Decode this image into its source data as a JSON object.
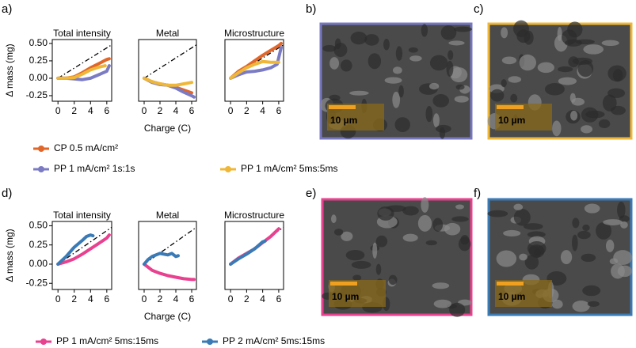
{
  "panel_labels": [
    "a)",
    "b)",
    "c)",
    "d)",
    "e)",
    "f)"
  ],
  "scale_bars": [
    "10 µm",
    "10 µm",
    "10 µm",
    "10 µm"
  ],
  "chart_data": [
    {
      "type": "line",
      "title": "Total intensity",
      "ylabel": "Δ mass (mg)",
      "xlim": [
        -0.7,
        6.6
      ],
      "ylim": [
        -0.33,
        0.556
      ],
      "xticks": [
        0,
        2,
        4,
        6
      ],
      "yticks": [
        {
          "value": 0.5,
          "label": "0.50"
        },
        {
          "value": 0.25,
          "label": "0.25"
        },
        {
          "value": 0,
          "label": "0.00"
        },
        {
          "value": -0.25,
          "label": "-0.25"
        }
      ],
      "reference": {
        "x": [
          0,
          6.6
        ],
        "values": [
          0,
          0.48
        ]
      },
      "series": [
        {
          "name": "CP 0.5 mA/cm²",
          "color": "#e0662a",
          "x": [
            0,
            1,
            2,
            3,
            4,
            5,
            6,
            6.3
          ],
          "values": [
            0,
            0,
            0.02,
            0.08,
            0.15,
            0.21,
            0.27,
            0.28
          ]
        },
        {
          "name": "PP 1 mA/cm² 1s:1s",
          "color": "#7b7bc4",
          "x": [
            0,
            1,
            2,
            3,
            4,
            5,
            6,
            6.3
          ],
          "values": [
            0,
            0,
            -0.01,
            -0.02,
            0,
            0.05,
            0.1,
            0.18
          ]
        },
        {
          "name": "PP 1 mA/cm² 5ms:5ms",
          "color": "#efb737",
          "x": [
            0,
            1,
            2,
            3,
            4,
            5,
            5.8
          ],
          "values": [
            0,
            0,
            0.01,
            0.06,
            0.12,
            0.16,
            0.18
          ]
        }
      ]
    },
    {
      "type": "line",
      "title": "Metal",
      "xlabel": "Charge (C)",
      "xlim": [
        -0.7,
        6.6
      ],
      "ylim": [
        -0.33,
        0.556
      ],
      "xticks": [
        0,
        2,
        4,
        6
      ],
      "reference": {
        "x": [
          0,
          6.6
        ],
        "values": [
          0,
          0.48
        ]
      },
      "series": [
        {
          "name": "CP 0.5 mA/cm²",
          "color": "#e0662a",
          "x": [
            0,
            1,
            2,
            3,
            4,
            5,
            6
          ],
          "values": [
            0,
            -0.05,
            -0.08,
            -0.1,
            -0.13,
            -0.17,
            -0.21
          ]
        },
        {
          "name": "PP 1 mA/cm² 1s:1s",
          "color": "#7b7bc4",
          "x": [
            0,
            1,
            2,
            3,
            4,
            5,
            6,
            6.3
          ],
          "values": [
            0,
            -0.06,
            -0.09,
            -0.1,
            -0.14,
            -0.2,
            -0.25,
            -0.27
          ]
        },
        {
          "name": "PP 1 mA/cm² 5ms:5ms",
          "color": "#efb737",
          "x": [
            0,
            1,
            2,
            3,
            4,
            5,
            6
          ],
          "values": [
            0,
            -0.05,
            -0.08,
            -0.1,
            -0.1,
            -0.08,
            -0.06
          ]
        }
      ]
    },
    {
      "type": "line",
      "title": "Microstructure",
      "xlim": [
        -0.7,
        6.6
      ],
      "ylim": [
        -0.33,
        0.556
      ],
      "xticks": [
        0,
        2,
        4,
        6
      ],
      "reference": {
        "x": [
          0,
          6.6
        ],
        "values": [
          0,
          0.48
        ]
      },
      "series": [
        {
          "name": "CP 0.5 mA/cm²",
          "color": "#e0662a",
          "x": [
            0,
            1,
            2,
            3,
            4,
            5,
            6,
            6.3
          ],
          "values": [
            0,
            0.1,
            0.17,
            0.25,
            0.33,
            0.4,
            0.47,
            0.5
          ]
        },
        {
          "name": "PP 1 mA/cm² 1s:1s",
          "color": "#7b7bc4",
          "x": [
            0,
            1,
            2,
            3,
            4,
            5,
            5.8,
            6.3
          ],
          "values": [
            0,
            0.05,
            0.09,
            0.1,
            0.12,
            0.15,
            0.2,
            0.44
          ]
        },
        {
          "name": "PP 1 mA/cm² 5ms:5ms",
          "color": "#efb737",
          "x": [
            0,
            1,
            2,
            3,
            4,
            5,
            6
          ],
          "values": [
            0,
            0.08,
            0.15,
            0.2,
            0.24,
            0.23,
            0.23
          ]
        }
      ]
    },
    {
      "type": "line",
      "title": "Total intensity",
      "ylabel": "Δ mass (mg)",
      "xlim": [
        -0.7,
        6.6
      ],
      "ylim": [
        -0.33,
        0.556
      ],
      "xticks": [
        0,
        2,
        4,
        6
      ],
      "yticks": [
        {
          "value": 0.5,
          "label": "0.50"
        },
        {
          "value": 0.25,
          "label": "0.25"
        },
        {
          "value": 0,
          "label": "0.00"
        },
        {
          "value": -0.25,
          "label": "-0.25"
        }
      ],
      "reference": {
        "x": [
          0,
          6.6
        ],
        "values": [
          0,
          0.48
        ]
      },
      "series": [
        {
          "name": "PP 1 mA/cm² 5ms:15ms",
          "color": "#e8418f",
          "x": [
            0,
            1,
            2,
            3,
            4,
            5,
            6,
            6.3
          ],
          "values": [
            0,
            0.03,
            0.07,
            0.13,
            0.2,
            0.27,
            0.34,
            0.38
          ]
        },
        {
          "name": "PP 2 mA/cm² 5ms:15ms",
          "color": "#3a7ab5",
          "x": [
            0,
            1,
            2,
            3,
            3.5,
            4,
            4.3
          ],
          "values": [
            0,
            0.1,
            0.22,
            0.31,
            0.36,
            0.38,
            0.37
          ]
        }
      ]
    },
    {
      "type": "line",
      "title": "Metal",
      "xlabel": "Charge (C)",
      "xlim": [
        -0.7,
        6.6
      ],
      "ylim": [
        -0.33,
        0.556
      ],
      "xticks": [
        0,
        2,
        4,
        6
      ],
      "reference": {
        "x": [
          0,
          6.6
        ],
        "values": [
          0,
          0.48
        ]
      },
      "series": [
        {
          "name": "PP 1 mA/cm² 5ms:15ms",
          "color": "#e8418f",
          "x": [
            0,
            1,
            2,
            3,
            4,
            5,
            6,
            6.3
          ],
          "values": [
            0,
            -0.08,
            -0.12,
            -0.15,
            -0.17,
            -0.19,
            -0.2,
            -0.2
          ]
        },
        {
          "name": "PP 2 mA/cm² 5ms:15ms",
          "color": "#3a7ab5",
          "x": [
            0,
            0.5,
            1,
            2,
            3,
            3.5,
            4,
            4.3
          ],
          "values": [
            0,
            0.06,
            0.1,
            0.14,
            0.12,
            0.14,
            0.1,
            0.11
          ]
        }
      ]
    },
    {
      "type": "line",
      "title": "Microstructure",
      "xlim": [
        -0.7,
        6.6
      ],
      "ylim": [
        -0.33,
        0.556
      ],
      "xticks": [
        0,
        2,
        4,
        6
      ],
      "reference": {
        "x": [
          0,
          6.6
        ],
        "values": [
          0,
          0.48
        ]
      },
      "series": [
        {
          "name": "PP 1 mA/cm² 5ms:15ms",
          "color": "#e8418f",
          "x": [
            0,
            1,
            2,
            3,
            4,
            5,
            6
          ],
          "values": [
            0,
            0.08,
            0.14,
            0.2,
            0.28,
            0.36,
            0.46
          ]
        },
        {
          "name": "PP 2 mA/cm² 5ms:15ms",
          "color": "#3a7ab5",
          "x": [
            0,
            1,
            2,
            3,
            4,
            4.3
          ],
          "values": [
            0,
            0.07,
            0.13,
            0.2,
            0.29,
            0.3
          ]
        }
      ]
    }
  ]
}
